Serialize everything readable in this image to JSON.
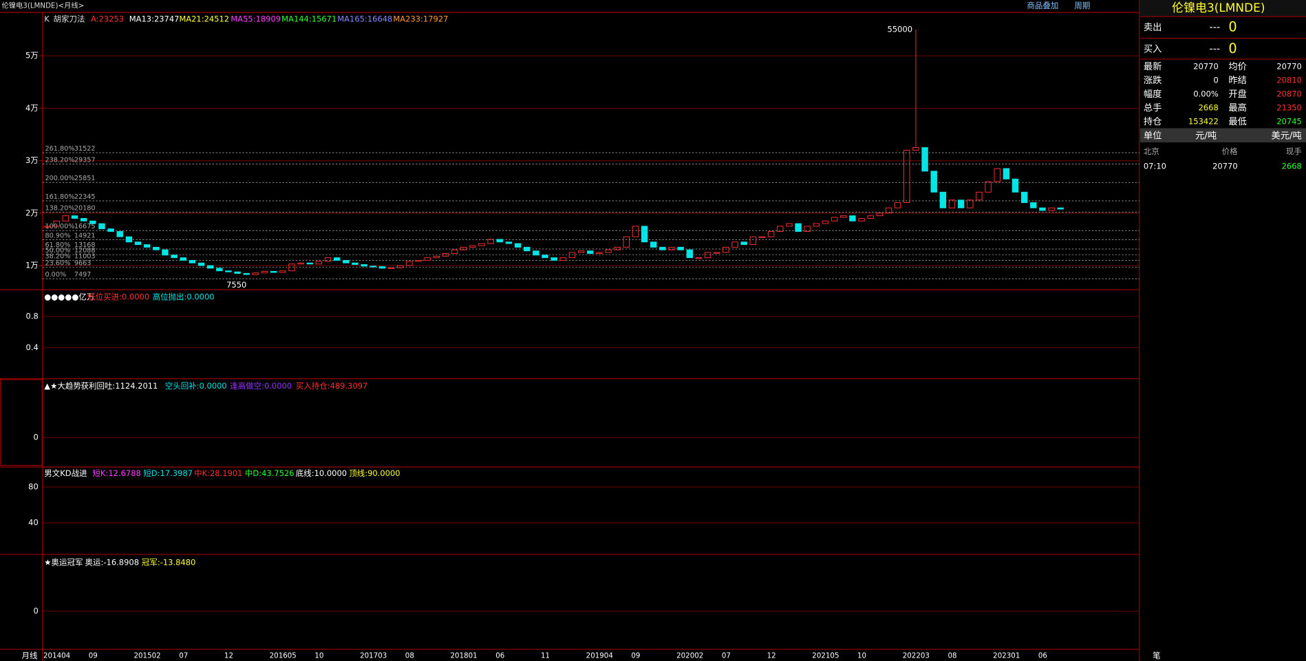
{
  "chart_data": {
    "type": "candlestick",
    "closes": [
      17500,
      18500,
      19500,
      19000,
      18500,
      18000,
      17000,
      16500,
      15500,
      14500,
      14000,
      13500,
      13000,
      12000,
      11500,
      11000,
      10500,
      10000,
      9500,
      9000,
      8800,
      8500,
      8300,
      8600,
      8900,
      8700,
      9000,
      10300,
      10500,
      10300,
      10800,
      11500,
      11000,
      10500,
      10200,
      9900,
      9800,
      9500,
      9600,
      10000,
      10800,
      11000,
      11500,
      11800,
      12300,
      13000,
      13500,
      13800,
      14200,
      15000,
      14500,
      14200,
      13500,
      12800,
      12000,
      11500,
      11000,
      11500,
      12500,
      12800,
      12300,
      12500,
      13000,
      13500,
      15500,
      17500,
      14500,
      13500,
      13000,
      13500,
      13000,
      11500,
      11500,
      12500,
      12500,
      13500,
      14500,
      14000,
      15500,
      15500,
      16500,
      17500,
      18000,
      16500,
      17500,
      18000,
      18500,
      19200,
      19500,
      18500,
      19000,
      19500,
      20000,
      21000,
      22000,
      32000,
      32500,
      28000,
      24000,
      21000,
      22500,
      21000,
      22500,
      24000,
      26000,
      28500,
      26500,
      24000,
      22000,
      21000,
      20500,
      21000,
      20770
    ],
    "ylim": [
      5400,
      58250
    ],
    "yticks": [
      {
        "value": 10000,
        "label": "1万"
      },
      {
        "value": 20000,
        "label": "2万"
      },
      {
        "value": 30000,
        "label": "3万"
      },
      {
        "value": 40000,
        "label": "4万"
      },
      {
        "value": 50000,
        "label": "5万"
      }
    ],
    "fib_levels": [
      {
        "percent": "261.80%",
        "value": 31522
      },
      {
        "percent": "238.20%",
        "value": 29357
      },
      {
        "percent": "200.00%",
        "value": 25851
      },
      {
        "percent": "161.80%",
        "value": 22345
      },
      {
        "percent": "138.20%",
        "value": 20180
      },
      {
        "percent": "100.00%",
        "value": 16675
      },
      {
        "percent": "80.90%",
        "value": 14921
      },
      {
        "percent": "61.80%",
        "value": 13168
      },
      {
        "percent": "50.00%",
        "value": 12088
      },
      {
        "percent": "38.20%",
        "value": 11003
      },
      {
        "percent": "23.60%",
        "value": 9663
      },
      {
        "percent": "0.00%",
        "value": 7497
      }
    ],
    "annotations": [
      {
        "label": "55000",
        "value": 55000
      },
      {
        "label": "7550",
        "value": 7550
      }
    ],
    "x_labels": [
      "201404",
      "09",
      "201502",
      "07",
      "12",
      "201605",
      "10",
      "201703",
      "08",
      "201801",
      "06",
      "11",
      "201904",
      "09",
      "202002",
      "07",
      "12",
      "202105",
      "10",
      "202203",
      "08",
      "202301",
      "06"
    ],
    "x_axis_title": "月线"
  },
  "indicator_panels": [
    {
      "ylim": [
        0,
        1.12
      ],
      "yticks": [
        0.8,
        0.4
      ]
    },
    {
      "ylim": [
        -700,
        1400
      ],
      "yticks": [
        0
      ]
    },
    {
      "ylim": [
        4.7,
        101.4
      ],
      "yticks": [
        80,
        40
      ]
    },
    {
      "ylim": [
        -70,
        101
      ],
      "yticks": [
        0
      ]
    }
  ],
  "screen": {
    "window_title": "伦镍电3(LMNDE)<月线>",
    "overlay": "商品叠加",
    "period": "周期",
    "main_legend": [
      "K",
      "胡家刀法",
      "A:23253",
      "MA13:23747",
      "MA21:24512",
      "MA55:18909",
      "MA144:15671",
      "MA165:16648",
      "MA233:17927"
    ],
    "panel2_legend": [
      "●●●●●亿万",
      "低位买进:0.0000",
      "高位抛出:0.0000"
    ],
    "panel3_legend": [
      "▲★大趋势",
      "获利回吐:1124.2011",
      "空头回补:0.0000",
      "逢高做空:0.0000",
      "买入持仓:489.3097"
    ],
    "panel4_legend": [
      "男文KD战进",
      "短K:12.6788",
      "短D:17.3987",
      "中K:28.1901",
      "中D:43.7526",
      "底线:10.0000",
      "顶线:90.0000"
    ],
    "panel5_legend": [
      "★奥运冠军",
      "奥运:-16.8908",
      "冠军:-13.8480"
    ],
    "quote": {
      "title": "伦镍电3(LMNDE)",
      "sell": [
        "卖出",
        "---",
        "0"
      ],
      "buy": [
        "买入",
        "---",
        "0"
      ],
      "rows": [
        [
          "最新",
          "20770",
          "均价",
          "20770"
        ],
        [
          "涨跌",
          "0",
          "昨结",
          "20810"
        ],
        [
          "幅度",
          "0.00%",
          "开盘",
          "20870"
        ],
        [
          "总手",
          "2668",
          "最高",
          "21350"
        ],
        [
          "持仓",
          "153422",
          "最低",
          "20745"
        ]
      ],
      "unit": [
        "单位",
        "元/吨",
        "美元/吨"
      ],
      "ticks_header": [
        "北京",
        "价格",
        "现手"
      ],
      "tick_row": [
        "07:10",
        "20770",
        "2668"
      ],
      "footer": "笔"
    }
  }
}
